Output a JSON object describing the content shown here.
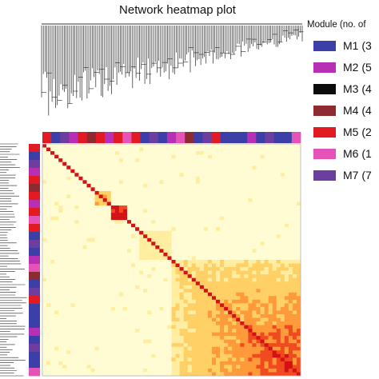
{
  "chart_data": {
    "type": "heatmap",
    "title": "Network heatmap plot",
    "legend_title": "Module (no. of",
    "legend_placement": "right",
    "modules": [
      {
        "name": "M1",
        "label": "M1 (3",
        "color": "#3c3fa8"
      },
      {
        "name": "M2",
        "label": "M2 (5",
        "color": "#b62fb5"
      },
      {
        "name": "M3",
        "label": "M3 (4",
        "color": "#0c0c0c"
      },
      {
        "name": "M4",
        "label": "M4 (4",
        "color": "#8e2b30"
      },
      {
        "name": "M5",
        "label": "M5 (2",
        "color": "#e21b22"
      },
      {
        "name": "M6",
        "label": "M6 (1",
        "color": "#e553b8"
      },
      {
        "name": "M7",
        "label": "M7 (7",
        "color": "#6b3ea0"
      }
    ],
    "module_color_bar": [
      "M5",
      "M1",
      "M7",
      "M2",
      "M5",
      "M4",
      "M5",
      "M2",
      "M5",
      "M6",
      "M5",
      "M1",
      "M7",
      "M1",
      "M2",
      "M6",
      "M4",
      "M1",
      "M7",
      "M5",
      "M1",
      "M1",
      "M1",
      "M2",
      "M1",
      "M7",
      "M1",
      "M1",
      "M6"
    ],
    "color_scale": [
      "#fffbd2",
      "#ffeea0",
      "#ffd066",
      "#ff9a3a",
      "#f04a1e",
      "#d41215"
    ]
  }
}
